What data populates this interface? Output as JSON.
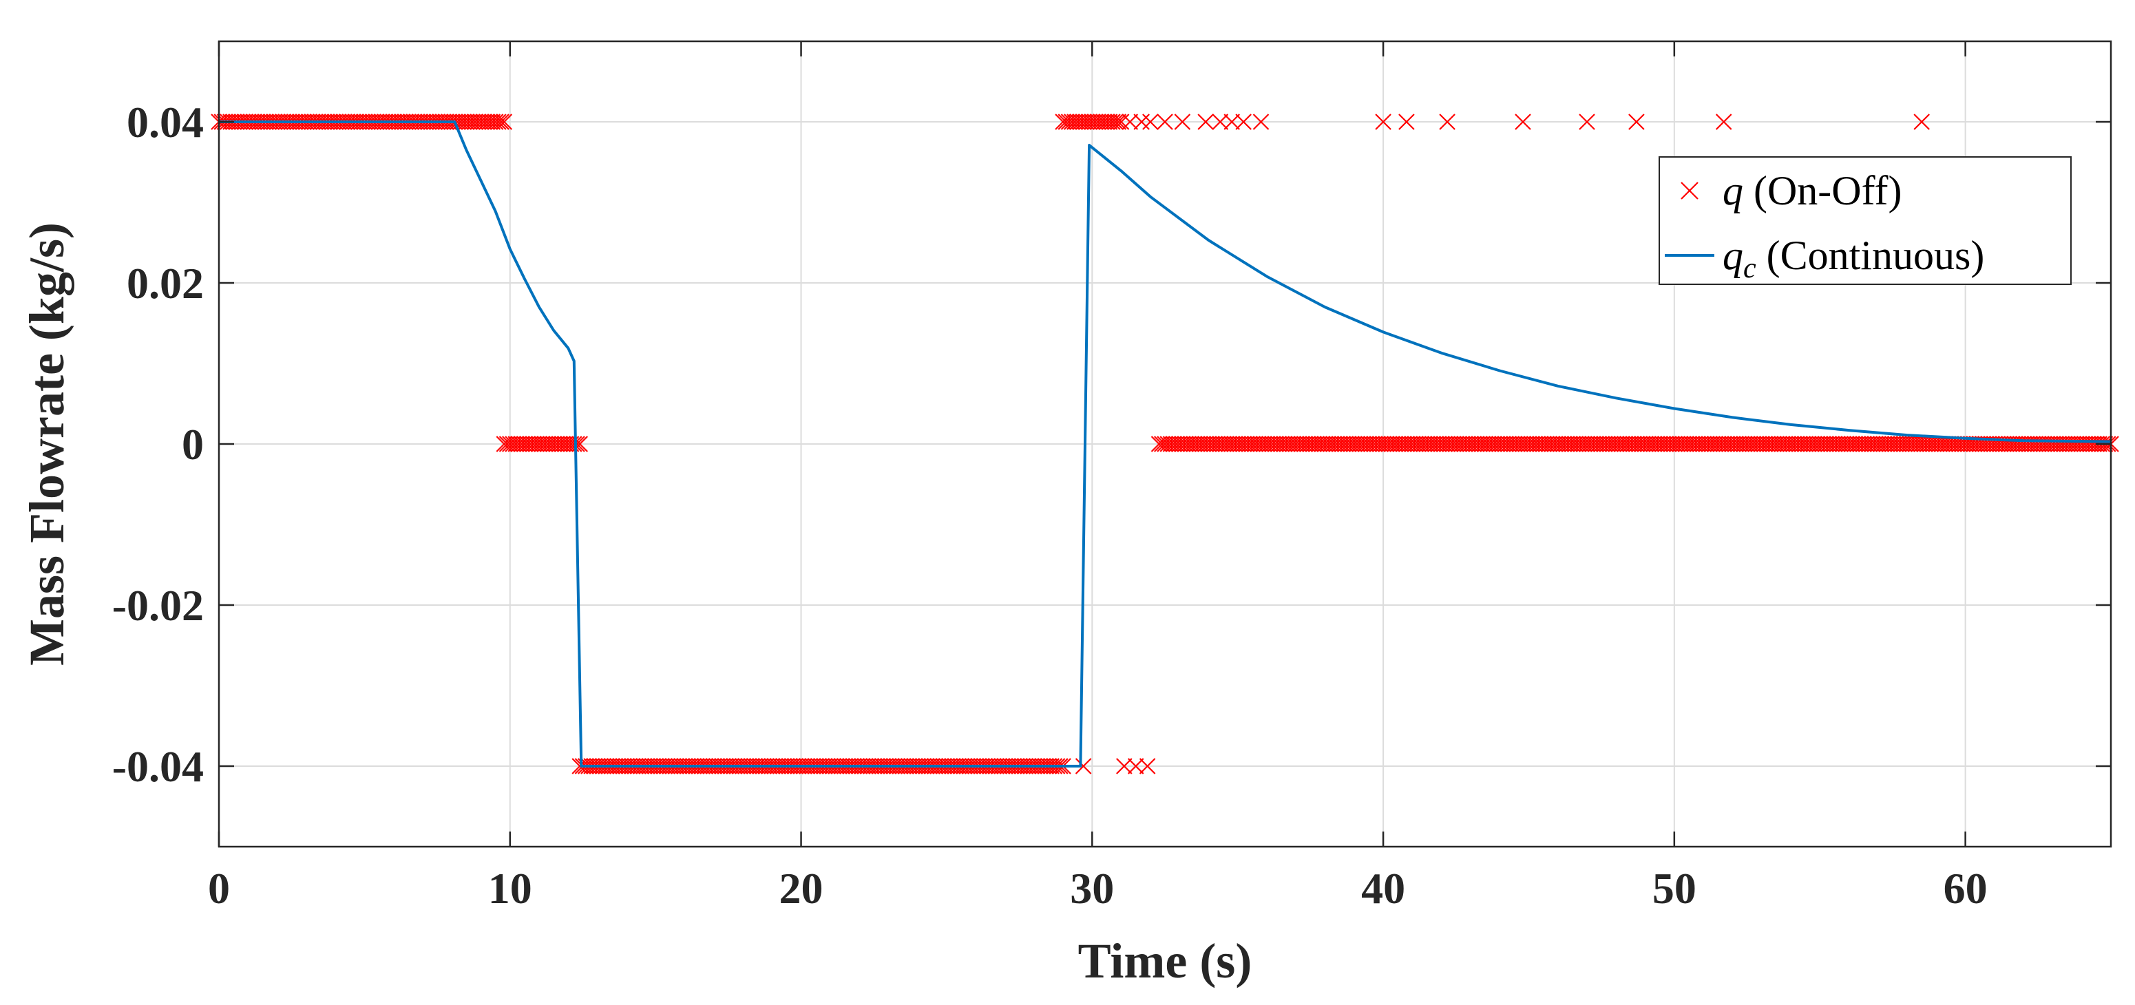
{
  "chart_data": {
    "type": "line",
    "xlabel": "Time (s)",
    "ylabel": "Mass Flowrate (kg/s)",
    "xlim": [
      0,
      65
    ],
    "ylim": [
      -0.05,
      0.05
    ],
    "xticks": [
      0,
      10,
      20,
      30,
      40,
      50,
      60
    ],
    "yticks": [
      -0.04,
      -0.02,
      0,
      0.02,
      0.04
    ],
    "xtick_labels": [
      "0",
      "10",
      "20",
      "30",
      "40",
      "50",
      "60"
    ],
    "ytick_labels": [
      "-0.04",
      "-0.02",
      "0",
      "0.02",
      "0.04"
    ],
    "grid": true,
    "legend_position": "top-right",
    "colors": {
      "onoff": "#ff0000",
      "continuous": "#0072bd"
    },
    "series": [
      {
        "name_symbol": "q",
        "name_rest": " (On-Off)",
        "marker": "x",
        "segments": [
          {
            "y": 0.04,
            "x_start": 0,
            "x_end": 9.8,
            "step": 0.1
          },
          {
            "y": 0,
            "x_start": 9.8,
            "x_end": 12.4,
            "step": 0.1
          },
          {
            "y": -0.04,
            "x_start": 12.4,
            "x_end": 29.0,
            "step": 0.1
          },
          {
            "y": 0.04,
            "x_start": 29.0,
            "x_end": 31.0,
            "step": 0.1
          },
          {
            "y": 0,
            "x_start": 32.3,
            "x_end": 65,
            "step": 0.1
          }
        ],
        "points": [
          {
            "x": 29.7,
            "y": -0.04
          },
          {
            "x": 31.1,
            "y": -0.04
          },
          {
            "x": 31.5,
            "y": -0.04
          },
          {
            "x": 31.9,
            "y": -0.04
          },
          {
            "x": 31.3,
            "y": 0.04
          },
          {
            "x": 31.7,
            "y": 0.04
          },
          {
            "x": 32.0,
            "y": 0.04
          },
          {
            "x": 32.5,
            "y": 0.04
          },
          {
            "x": 33.1,
            "y": 0.04
          },
          {
            "x": 33.9,
            "y": 0.04
          },
          {
            "x": 34.4,
            "y": 0.04
          },
          {
            "x": 34.8,
            "y": 0.04
          },
          {
            "x": 35.2,
            "y": 0.04
          },
          {
            "x": 35.8,
            "y": 0.04
          },
          {
            "x": 40.0,
            "y": 0.04
          },
          {
            "x": 40.8,
            "y": 0.04
          },
          {
            "x": 42.2,
            "y": 0.04
          },
          {
            "x": 44.8,
            "y": 0.04
          },
          {
            "x": 47.0,
            "y": 0.04
          },
          {
            "x": 48.7,
            "y": 0.04
          },
          {
            "x": 51.7,
            "y": 0.04
          },
          {
            "x": 58.5,
            "y": 0.04
          }
        ]
      },
      {
        "name_symbol": "q",
        "name_sub": "c",
        "name_rest": " (Continuous)",
        "x": [
          0,
          8.1,
          8.5,
          9.0,
          9.5,
          10.0,
          10.5,
          11.0,
          11.5,
          12.0,
          12.2,
          12.45,
          29.6,
          29.9,
          31,
          32,
          34,
          36,
          38,
          40,
          42,
          44,
          46,
          48,
          50,
          52,
          54,
          56,
          58,
          60,
          62,
          65
        ],
        "y": [
          0.04,
          0.04,
          0.0365,
          0.0327,
          0.0289,
          0.0242,
          0.0205,
          0.017,
          0.0141,
          0.0119,
          0.0103,
          -0.04,
          -0.04,
          0.0371,
          0.0339,
          0.0307,
          0.0253,
          0.0208,
          0.017,
          0.0139,
          0.0113,
          0.0091,
          0.0072,
          0.0057,
          0.0044,
          0.0033,
          0.0024,
          0.0017,
          0.0011,
          0.0007,
          0.0004,
          0.0003
        ]
      }
    ]
  }
}
